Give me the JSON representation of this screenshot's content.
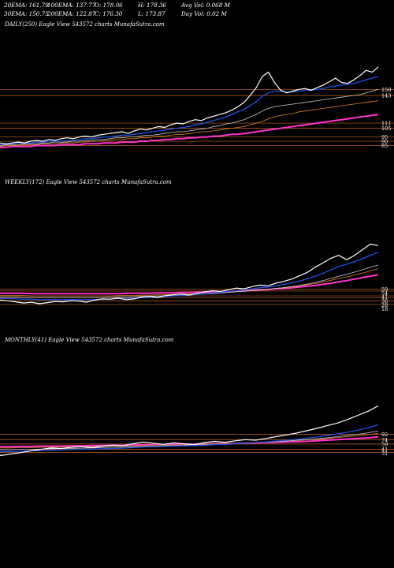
{
  "header": {
    "row1": [
      "20EMA: 161.79",
      "100EMA: 137.77",
      "O: 178.06",
      "H: 178.36",
      "Avg Vol: 0.068  M"
    ],
    "row2": [
      "30EMA: 150.75",
      "200EMA: 122.87",
      "C: 176.30",
      "L: 173.87",
      "Day Vol: 0.02  M"
    ]
  },
  "panels": [
    {
      "label": "DAILY(250) Eagle   View  543572  charts MunafaSutra.com"
    },
    {
      "label": "WEEKLY(172) Eagle   View  543572  charts MunafaSutra.com"
    },
    {
      "label": "MONTHLY(41) Eagle   View  543572  charts MunafaSutra.com"
    }
  ],
  "colors": {
    "background": "#000000",
    "price": "#ffffff",
    "ema_fast": "#1f4fe0",
    "ema_long": "#ff33cc",
    "ema_mid": "#c8c8c8",
    "ema_orange": "#d9822b",
    "level_line": "#c0642a"
  },
  "chart_data": [
    {
      "type": "line",
      "title": "DAILY(250)",
      "ylim": [
        80,
        185
      ],
      "tick_labels": [
        "150",
        "143",
        "111",
        "105",
        "95",
        "90",
        "85"
      ],
      "levels": [
        150,
        143,
        111,
        105,
        95,
        90,
        85
      ],
      "series": [
        {
          "role": "price",
          "values": [
            88,
            87,
            88,
            89,
            88,
            90,
            91,
            90,
            92,
            91,
            93,
            94,
            93,
            95,
            96,
            95,
            97,
            98,
            99,
            100,
            101,
            99,
            102,
            104,
            103,
            105,
            107,
            106,
            109,
            111,
            110,
            113,
            115,
            114,
            117,
            119,
            121,
            123,
            126,
            130,
            135,
            143,
            152,
            165,
            170,
            158,
            149,
            146,
            148,
            150,
            151,
            149,
            152,
            155,
            159,
            163,
            158,
            157,
            161,
            166,
            172,
            170,
            176
          ]
        },
        {
          "role": "ema_fast",
          "values": [
            86,
            87,
            87,
            88,
            88,
            88,
            89,
            89,
            90,
            90,
            90,
            91,
            91,
            92,
            93,
            93,
            94,
            95,
            95,
            96,
            97,
            97,
            98,
            99,
            100,
            101,
            102,
            103,
            104,
            105,
            106,
            107,
            109,
            110,
            112,
            114,
            116,
            118,
            121,
            124,
            127,
            131,
            136,
            142,
            146,
            148,
            148,
            147,
            147,
            148,
            149,
            149,
            150,
            151,
            153,
            154,
            155,
            156,
            157,
            159,
            161,
            163,
            165
          ]
        },
        {
          "role": "ema_mid",
          "values": [
            85,
            86,
            86,
            86,
            87,
            87,
            87,
            88,
            88,
            89,
            89,
            89,
            90,
            90,
            91,
            91,
            92,
            92,
            93,
            94,
            94,
            95,
            95,
            96,
            97,
            97,
            98,
            99,
            100,
            101,
            101,
            102,
            103,
            104,
            105,
            107,
            108,
            110,
            111,
            113,
            115,
            118,
            121,
            125,
            128,
            130,
            131,
            132,
            133,
            134,
            135,
            136,
            137,
            138,
            139,
            140,
            141,
            142,
            143,
            144,
            146,
            148,
            150
          ]
        },
        {
          "role": "ema_orange",
          "values": [
            84,
            85,
            85,
            85,
            86,
            86,
            86,
            87,
            87,
            87,
            88,
            88,
            88,
            89,
            89,
            90,
            90,
            91,
            91,
            92,
            92,
            93,
            93,
            94,
            94,
            95,
            96,
            96,
            97,
            98,
            98,
            99,
            100,
            101,
            101,
            102,
            103,
            104,
            105,
            106,
            107,
            109,
            111,
            113,
            116,
            118,
            120,
            121,
            122,
            124,
            125,
            126,
            127,
            128,
            129,
            130,
            131,
            132,
            133,
            134,
            135,
            136,
            137
          ]
        },
        {
          "role": "ema_long",
          "values": [
            83,
            83,
            84,
            84,
            84,
            84,
            85,
            85,
            85,
            85,
            86,
            86,
            86,
            86,
            87,
            87,
            87,
            88,
            88,
            88,
            89,
            89,
            89,
            90,
            90,
            91,
            91,
            92,
            92,
            93,
            93,
            94,
            94,
            95,
            95,
            96,
            96,
            97,
            98,
            98,
            99,
            100,
            101,
            102,
            103,
            104,
            105,
            106,
            107,
            108,
            109,
            110,
            111,
            112,
            113,
            114,
            115,
            116,
            117,
            118,
            119,
            120,
            121
          ]
        }
      ]
    },
    {
      "type": "line",
      "title": "WEEKLY(172)",
      "ylim": [
        20,
        200
      ],
      "tick_labels": [
        "59",
        "54",
        "41",
        "36",
        "28",
        "18"
      ],
      "levels": [
        59,
        54,
        41,
        36,
        28,
        18
      ],
      "series": [
        {
          "role": "price",
          "values": [
            30,
            28,
            25,
            22,
            24,
            20,
            23,
            26,
            25,
            28,
            27,
            24,
            30,
            33,
            32,
            35,
            31,
            33,
            38,
            40,
            37,
            42,
            44,
            46,
            43,
            48,
            52,
            55,
            53,
            58,
            62,
            60,
            66,
            70,
            68,
            75,
            80,
            86,
            95,
            104,
            118,
            130,
            142,
            150,
            138,
            150,
            165,
            180,
            176
          ]
        },
        {
          "role": "ema_fast",
          "values": [
            34,
            34,
            33,
            32,
            32,
            31,
            31,
            31,
            31,
            31,
            31,
            31,
            31,
            32,
            33,
            34,
            34,
            35,
            36,
            37,
            38,
            39,
            41,
            42,
            43,
            45,
            47,
            49,
            51,
            53,
            55,
            57,
            60,
            63,
            65,
            68,
            72,
            76,
            81,
            87,
            94,
            102,
            111,
            120,
            126,
            133,
            141,
            150,
            158
          ]
        },
        {
          "role": "ema_mid",
          "values": [
            38,
            38,
            38,
            37,
            37,
            37,
            37,
            37,
            37,
            37,
            37,
            37,
            37,
            37,
            38,
            38,
            38,
            39,
            39,
            40,
            41,
            41,
            42,
            43,
            44,
            45,
            46,
            47,
            49,
            50,
            52,
            53,
            55,
            57,
            59,
            61,
            63,
            66,
            69,
            73,
            77,
            82,
            88,
            94,
            99,
            105,
            111,
            118,
            124
          ]
        },
        {
          "role": "ema_orange",
          "values": [
            42,
            42,
            42,
            42,
            41,
            41,
            41,
            41,
            41,
            41,
            41,
            41,
            41,
            41,
            41,
            42,
            42,
            42,
            43,
            43,
            44,
            44,
            45,
            46,
            46,
            47,
            48,
            49,
            50,
            51,
            53,
            54,
            56,
            57,
            59,
            61,
            63,
            65,
            68,
            71,
            74,
            78,
            83,
            88,
            92,
            97,
            102,
            108,
            114
          ]
        },
        {
          "role": "ema_long",
          "values": [
            48,
            48,
            48,
            48,
            47,
            47,
            47,
            47,
            47,
            47,
            47,
            47,
            47,
            47,
            47,
            47,
            48,
            48,
            48,
            48,
            49,
            49,
            49,
            50,
            50,
            51,
            51,
            52,
            53,
            53,
            54,
            55,
            56,
            57,
            58,
            60,
            61,
            63,
            65,
            67,
            69,
            72,
            75,
            79,
            82,
            86,
            90,
            94,
            98
          ]
        }
      ]
    },
    {
      "type": "line",
      "title": "MONTHLY(41)",
      "ylim": [
        0,
        200
      ],
      "tick_labels": [
        "92",
        "74",
        "59",
        "41",
        "31"
      ],
      "levels": [
        92,
        74,
        59,
        41,
        31
      ],
      "series": [
        {
          "role": "price",
          "values": [
            20,
            25,
            30,
            36,
            41,
            46,
            44,
            48,
            50,
            47,
            52,
            55,
            53,
            60,
            66,
            62,
            58,
            63,
            60,
            57,
            64,
            68,
            65,
            70,
            74,
            72,
            78,
            84,
            90,
            96,
            104,
            112,
            121,
            130,
            142,
            156,
            170,
            188
          ]
        },
        {
          "role": "ema_fast",
          "values": [
            34,
            34,
            35,
            36,
            37,
            38,
            39,
            40,
            41,
            42,
            43,
            44,
            45,
            47,
            49,
            50,
            51,
            52,
            53,
            54,
            55,
            57,
            58,
            60,
            62,
            64,
            66,
            69,
            72,
            75,
            79,
            83,
            88,
            93,
            99,
            106,
            114,
            124
          ]
        },
        {
          "role": "ema_mid",
          "values": [
            40,
            40,
            41,
            41,
            42,
            43,
            44,
            44,
            45,
            46,
            47,
            48,
            48,
            50,
            51,
            52,
            53,
            54,
            55,
            56,
            57,
            58,
            59,
            61,
            62,
            64,
            65,
            67,
            69,
            72,
            74,
            77,
            80,
            84,
            88,
            92,
            97,
            103
          ]
        },
        {
          "role": "ema_orange",
          "values": [
            46,
            46,
            47,
            47,
            48,
            48,
            49,
            49,
            50,
            50,
            51,
            52,
            52,
            53,
            54,
            55,
            56,
            56,
            57,
            58,
            59,
            60,
            61,
            62,
            63,
            64,
            66,
            67,
            69,
            71,
            73,
            75,
            78,
            81,
            84,
            87,
            91,
            95
          ]
        },
        {
          "role": "ema_long",
          "values": [
            50,
            50,
            51,
            51,
            52,
            52,
            52,
            53,
            53,
            54,
            54,
            55,
            55,
            56,
            56,
            57,
            57,
            58,
            58,
            59,
            59,
            60,
            61,
            61,
            62,
            63,
            64,
            65,
            66,
            67,
            68,
            70,
            72,
            74,
            76,
            78,
            80,
            83
          ]
        }
      ]
    }
  ]
}
